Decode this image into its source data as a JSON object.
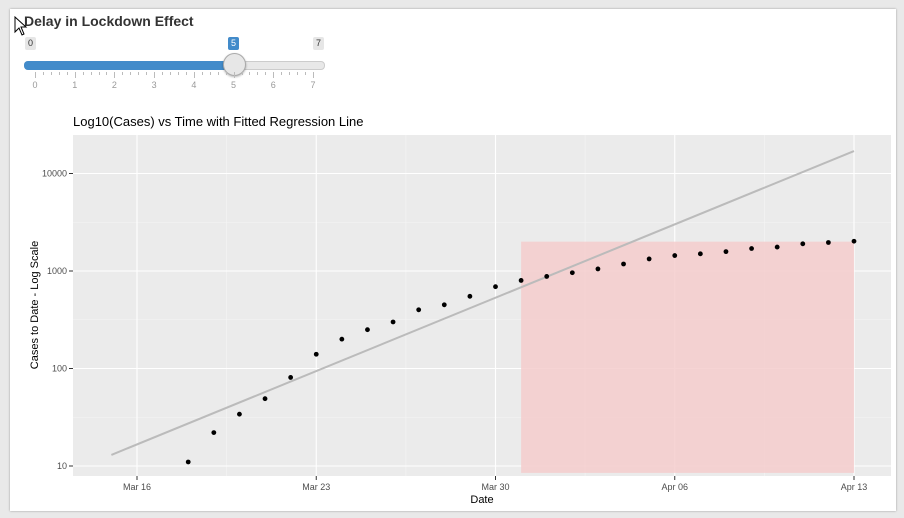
{
  "slider": {
    "title": "Delay in Lockdown Effect",
    "min_label": "0",
    "max_label": "7",
    "value": 5,
    "value_label": "5",
    "min": 0,
    "max": 7,
    "tick_labels": [
      "0",
      "1",
      "2",
      "3",
      "4",
      "5",
      "6",
      "7"
    ],
    "accent_color": "#428bca"
  },
  "chart_data": {
    "type": "scatter",
    "title": "Log10(Cases) vs Time with Fitted Regression Line",
    "xlabel": "Date",
    "ylabel": "Cases to Date - Log Scale",
    "x_ticks": [
      "Mar 16",
      "Mar 23",
      "Mar 30",
      "Apr 06",
      "Apr 13"
    ],
    "y_ticks": [
      "10",
      "100",
      "1000",
      "10000"
    ],
    "y_scale": "log10",
    "grid": true,
    "background_color": "#ebebeb",
    "points": [
      {
        "x": "Mar 18",
        "y": 11
      },
      {
        "x": "Mar 19",
        "y": 22
      },
      {
        "x": "Mar 20",
        "y": 34
      },
      {
        "x": "Mar 21",
        "y": 49
      },
      {
        "x": "Mar 22",
        "y": 81
      },
      {
        "x": "Mar 23",
        "y": 140
      },
      {
        "x": "Mar 24",
        "y": 200
      },
      {
        "x": "Mar 25",
        "y": 250
      },
      {
        "x": "Mar 26",
        "y": 300
      },
      {
        "x": "Mar 27",
        "y": 400
      },
      {
        "x": "Mar 28",
        "y": 450
      },
      {
        "x": "Mar 29",
        "y": 550
      },
      {
        "x": "Mar 30",
        "y": 690
      },
      {
        "x": "Mar 31",
        "y": 800
      },
      {
        "x": "Apr 01",
        "y": 880
      },
      {
        "x": "Apr 02",
        "y": 960
      },
      {
        "x": "Apr 03",
        "y": 1050
      },
      {
        "x": "Apr 04",
        "y": 1180
      },
      {
        "x": "Apr 05",
        "y": 1330
      },
      {
        "x": "Apr 06",
        "y": 1440
      },
      {
        "x": "Apr 07",
        "y": 1500
      },
      {
        "x": "Apr 08",
        "y": 1580
      },
      {
        "x": "Apr 09",
        "y": 1700
      },
      {
        "x": "Apr 10",
        "y": 1760
      },
      {
        "x": "Apr 11",
        "y": 1900
      },
      {
        "x": "Apr 12",
        "y": 1960
      },
      {
        "x": "Apr 13",
        "y": 2020
      }
    ],
    "regression_line": {
      "x": [
        "Mar 15",
        "Apr 13"
      ],
      "y": [
        13,
        17000
      ],
      "color": "#bbbbbb"
    },
    "highlight_region": {
      "x": [
        "Mar 31",
        "Apr 13"
      ],
      "y": [
        8.5,
        2000
      ],
      "color": "#f4cccc"
    }
  }
}
